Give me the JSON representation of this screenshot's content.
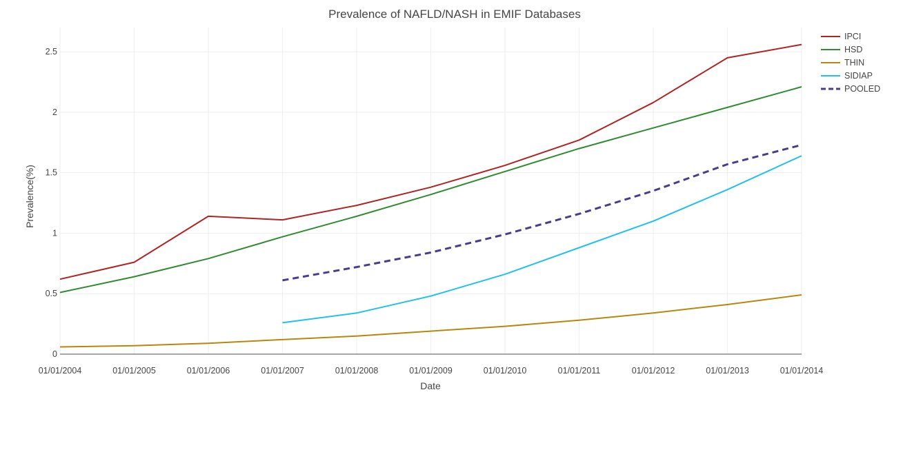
{
  "chart_data": {
    "type": "line",
    "title": "Prevalence of NAFLD/NASH in EMIF Databases",
    "xlabel": "Date",
    "ylabel": "Prevalence(%)",
    "x": [
      "01/01/2004",
      "01/01/2005",
      "01/01/2006",
      "01/01/2007",
      "01/01/2008",
      "01/01/2009",
      "01/01/2010",
      "01/01/2011",
      "01/01/2012",
      "01/01/2013",
      "01/01/2014"
    ],
    "xticks": [
      "01/01/2004",
      "01/01/2005",
      "01/01/2006",
      "01/01/2007",
      "01/01/2008",
      "01/01/2009",
      "01/01/2010",
      "01/01/2011",
      "01/01/2012",
      "01/01/2013",
      "01/01/2014"
    ],
    "yticks": [
      "0",
      "0.5",
      "1",
      "1.5",
      "2",
      "2.5"
    ],
    "ylim": [
      0,
      2.7
    ],
    "grid": true,
    "legend_position": "top-right",
    "series": [
      {
        "name": "IPCI",
        "color": "#b22222",
        "dash": "solid",
        "values": [
          0.62,
          0.76,
          1.14,
          1.11,
          1.23,
          1.38,
          1.56,
          1.77,
          2.08,
          2.45,
          2.56
        ]
      },
      {
        "name": "HSD",
        "color": "#2e8b2e",
        "dash": "solid",
        "values": [
          0.51,
          0.64,
          0.79,
          0.97,
          1.14,
          1.32,
          1.51,
          1.7,
          1.87,
          2.04,
          2.21
        ]
      },
      {
        "name": "THIN",
        "color": "#b8860b",
        "dash": "solid",
        "values": [
          0.06,
          0.07,
          0.09,
          0.12,
          0.15,
          0.19,
          0.23,
          0.28,
          0.34,
          0.41,
          0.49
        ]
      },
      {
        "name": "SIDIAP",
        "color": "#1ec0f0",
        "dash": "solid",
        "values": [
          null,
          null,
          null,
          0.26,
          0.34,
          0.48,
          0.66,
          0.88,
          1.1,
          1.36,
          1.64
        ]
      },
      {
        "name": "POOLED",
        "color": "#483d8b",
        "dash": "dash",
        "values": [
          null,
          null,
          null,
          0.61,
          0.72,
          0.84,
          0.99,
          1.16,
          1.35,
          1.57,
          1.73
        ]
      }
    ]
  }
}
